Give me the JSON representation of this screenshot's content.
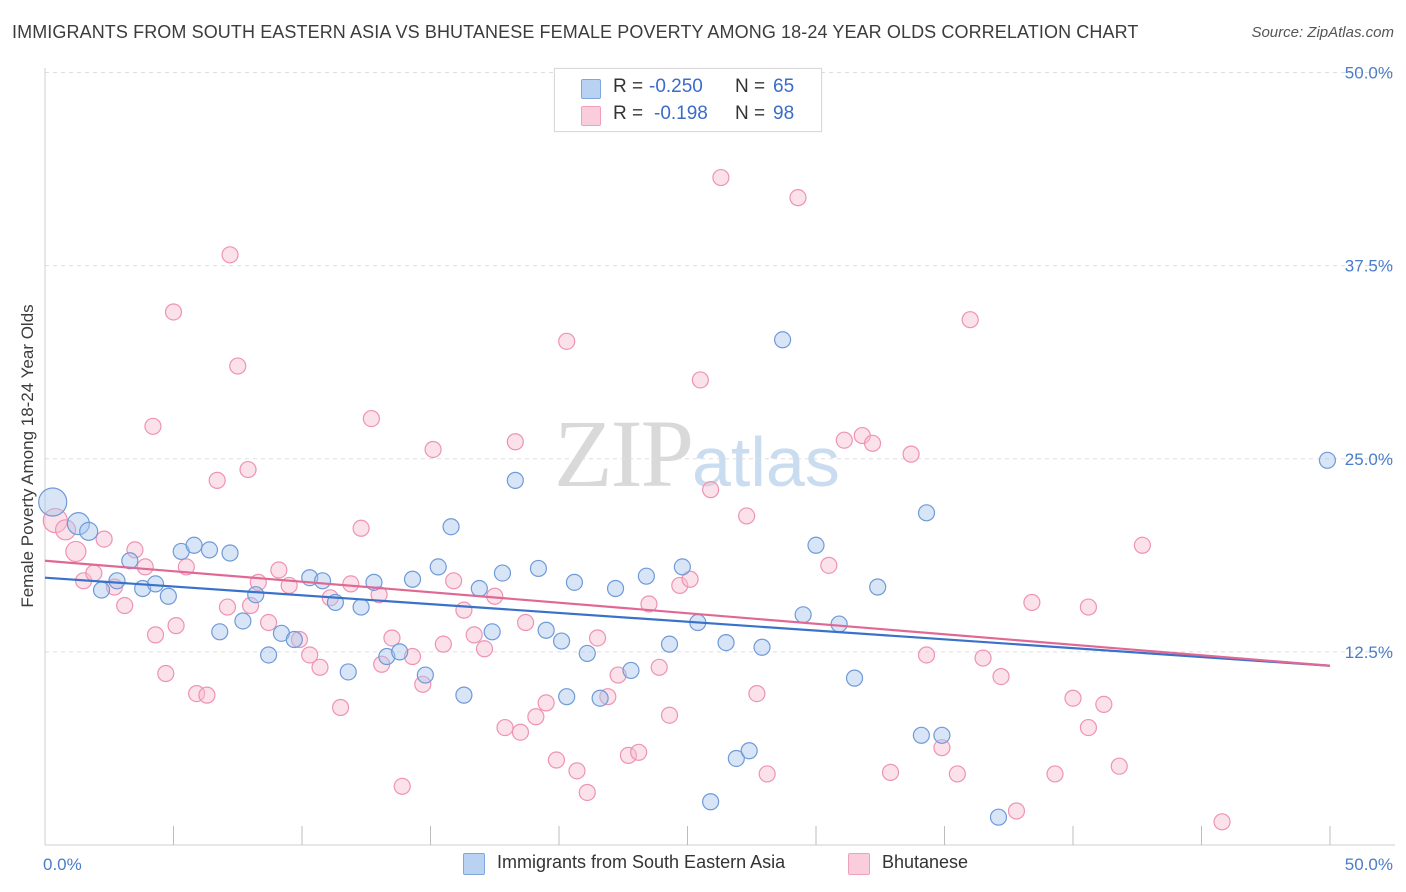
{
  "title": "IMMIGRANTS FROM SOUTH EASTERN ASIA VS BHUTANESE FEMALE POVERTY AMONG 18-24 YEAR OLDS CORRELATION CHART",
  "source": "Source: ZipAtlas.com",
  "watermark": {
    "zip": "ZIP",
    "atlas": "atlas"
  },
  "legend": {
    "rows": [
      {
        "r_label": "R =",
        "r_value": "-0.250",
        "n_label": "N =",
        "n_value": "65"
      },
      {
        "r_label": "R =",
        "r_value": "-0.198",
        "n_label": "N =",
        "n_value": "98"
      }
    ]
  },
  "bottom_legend": [
    "Immigrants from South Eastern Asia",
    "Bhutanese"
  ],
  "colors": {
    "blue_fill": "#a9c6ee",
    "blue_stroke": "#6f9ad8",
    "blue_line": "#3a72c9",
    "pink_fill": "#f6bcd0",
    "pink_stroke": "#ee93b3",
    "pink_line": "#e06895",
    "grid": "#dedede",
    "tick_text": "#4a7cc9"
  },
  "chart_data": {
    "type": "scatter",
    "title": "IMMIGRANTS FROM SOUTH EASTERN ASIA VS BHUTANESE FEMALE POVERTY AMONG 18-24 YEAR OLDS CORRELATION CHART",
    "xlabel": "",
    "ylabel": "Female Poverty Among 18-24 Year Olds",
    "xlim": [
      0,
      50
    ],
    "ylim": [
      0,
      50
    ],
    "x_tick_labels": [
      "0.0%",
      "50.0%"
    ],
    "y_ticks": [
      12.5,
      25.0,
      37.5,
      50.0
    ],
    "y_tick_labels": [
      "12.5%",
      "25.0%",
      "37.5%",
      "50.0%"
    ],
    "grid": "horizontal dashed",
    "legend_position": "top-center",
    "series": [
      {
        "name": "Immigrants from South Eastern Asia",
        "color": "#a9c6ee",
        "trend": {
          "x": [
            0,
            50
          ],
          "y": [
            17.3,
            11.6
          ]
        },
        "points": [
          [
            0.3,
            22.2,
            14
          ],
          [
            1.3,
            20.8,
            11
          ],
          [
            1.7,
            20.3,
            9
          ],
          [
            2.2,
            16.5,
            8
          ],
          [
            2.8,
            17.1,
            8
          ],
          [
            3.3,
            18.4,
            8
          ],
          [
            3.8,
            16.6,
            8
          ],
          [
            4.3,
            16.9,
            8
          ],
          [
            4.8,
            16.1,
            8
          ],
          [
            5.3,
            19.0,
            8
          ],
          [
            5.8,
            19.4,
            8
          ],
          [
            6.4,
            19.1,
            8
          ],
          [
            6.8,
            13.8,
            8
          ],
          [
            7.2,
            18.9,
            8
          ],
          [
            7.7,
            14.5,
            8
          ],
          [
            8.2,
            16.2,
            8
          ],
          [
            8.7,
            12.3,
            8
          ],
          [
            9.2,
            13.7,
            8
          ],
          [
            9.7,
            13.3,
            8
          ],
          [
            10.3,
            17.3,
            8
          ],
          [
            10.8,
            17.1,
            8
          ],
          [
            11.3,
            15.7,
            8
          ],
          [
            11.8,
            11.2,
            8
          ],
          [
            12.3,
            15.4,
            8
          ],
          [
            12.8,
            17.0,
            8
          ],
          [
            13.3,
            12.2,
            8
          ],
          [
            13.8,
            12.5,
            8
          ],
          [
            14.3,
            17.2,
            8
          ],
          [
            14.8,
            11.0,
            8
          ],
          [
            15.3,
            18.0,
            8
          ],
          [
            15.8,
            20.6,
            8
          ],
          [
            16.3,
            9.7,
            8
          ],
          [
            16.9,
            16.6,
            8
          ],
          [
            17.4,
            13.8,
            8
          ],
          [
            17.8,
            17.6,
            8
          ],
          [
            18.3,
            23.6,
            8
          ],
          [
            19.2,
            17.9,
            8
          ],
          [
            19.5,
            13.9,
            8
          ],
          [
            20.1,
            13.2,
            8
          ],
          [
            20.6,
            17.0,
            8
          ],
          [
            21.1,
            12.4,
            8
          ],
          [
            21.6,
            9.5,
            8
          ],
          [
            22.2,
            16.6,
            8
          ],
          [
            22.8,
            11.3,
            8
          ],
          [
            23.4,
            17.4,
            8
          ],
          [
            24.3,
            13.0,
            8
          ],
          [
            24.8,
            18.0,
            8
          ],
          [
            25.4,
            14.4,
            8
          ],
          [
            25.9,
            2.8,
            8
          ],
          [
            26.5,
            13.1,
            8
          ],
          [
            26.9,
            5.6,
            8
          ],
          [
            27.4,
            6.1,
            8
          ],
          [
            27.9,
            12.8,
            8
          ],
          [
            28.7,
            32.7,
            8
          ],
          [
            29.5,
            14.9,
            8
          ],
          [
            30.0,
            19.4,
            8
          ],
          [
            30.9,
            14.3,
            8
          ],
          [
            31.5,
            10.8,
            8
          ],
          [
            32.4,
            16.7,
            8
          ],
          [
            34.1,
            7.1,
            8
          ],
          [
            34.3,
            21.5,
            8
          ],
          [
            34.9,
            7.1,
            8
          ],
          [
            37.1,
            1.8,
            8
          ],
          [
            49.9,
            24.9,
            8
          ],
          [
            20.3,
            9.6,
            8
          ]
        ]
      },
      {
        "name": "Bhutanese",
        "color": "#f6bcd0",
        "trend": {
          "x": [
            0,
            50
          ],
          "y": [
            18.4,
            11.6
          ]
        },
        "points": [
          [
            0.4,
            21.0,
            12
          ],
          [
            0.8,
            20.4,
            10
          ],
          [
            1.5,
            17.1,
            8
          ],
          [
            1.9,
            17.6,
            8
          ],
          [
            2.3,
            19.8,
            8
          ],
          [
            2.7,
            16.7,
            8
          ],
          [
            3.1,
            15.5,
            8
          ],
          [
            3.5,
            19.1,
            8
          ],
          [
            3.9,
            18.0,
            8
          ],
          [
            4.3,
            13.6,
            8
          ],
          [
            4.7,
            11.1,
            8
          ],
          [
            5.1,
            14.2,
            8
          ],
          [
            5.5,
            18.0,
            8
          ],
          [
            5.9,
            9.8,
            8
          ],
          [
            6.3,
            9.7,
            8
          ],
          [
            6.7,
            23.6,
            8
          ],
          [
            7.1,
            15.4,
            8
          ],
          [
            7.5,
            31.0,
            8
          ],
          [
            7.9,
            24.3,
            8
          ],
          [
            8.3,
            17.0,
            8
          ],
          [
            8.7,
            14.4,
            8
          ],
          [
            9.1,
            17.8,
            8
          ],
          [
            9.5,
            16.8,
            8
          ],
          [
            9.9,
            13.3,
            8
          ],
          [
            10.3,
            12.3,
            8
          ],
          [
            10.7,
            11.5,
            8
          ],
          [
            11.1,
            16.0,
            8
          ],
          [
            11.5,
            8.9,
            8
          ],
          [
            11.9,
            16.9,
            8
          ],
          [
            12.3,
            20.5,
            8
          ],
          [
            12.7,
            27.6,
            8
          ],
          [
            13.1,
            11.7,
            8
          ],
          [
            13.5,
            13.4,
            8
          ],
          [
            13.9,
            3.8,
            8
          ],
          [
            14.3,
            12.2,
            8
          ],
          [
            14.7,
            10.4,
            8
          ],
          [
            15.1,
            25.6,
            8
          ],
          [
            15.5,
            13.0,
            8
          ],
          [
            15.9,
            17.1,
            8
          ],
          [
            16.3,
            15.2,
            8
          ],
          [
            16.7,
            13.6,
            8
          ],
          [
            17.1,
            12.7,
            8
          ],
          [
            17.5,
            16.1,
            8
          ],
          [
            17.9,
            7.6,
            8
          ],
          [
            18.3,
            26.1,
            8
          ],
          [
            18.7,
            14.4,
            8
          ],
          [
            19.1,
            8.3,
            8
          ],
          [
            19.5,
            9.2,
            8
          ],
          [
            19.9,
            5.5,
            8
          ],
          [
            20.3,
            32.6,
            8
          ],
          [
            20.7,
            4.8,
            8
          ],
          [
            21.1,
            3.4,
            8
          ],
          [
            21.5,
            13.4,
            8
          ],
          [
            21.9,
            9.6,
            8
          ],
          [
            22.3,
            11.0,
            8
          ],
          [
            22.7,
            5.8,
            8
          ],
          [
            23.1,
            6.0,
            8
          ],
          [
            23.5,
            15.6,
            8
          ],
          [
            23.9,
            11.5,
            8
          ],
          [
            24.3,
            8.4,
            8
          ],
          [
            24.7,
            16.8,
            8
          ],
          [
            25.1,
            17.2,
            8
          ],
          [
            25.5,
            30.1,
            8
          ],
          [
            25.9,
            23.0,
            8
          ],
          [
            26.3,
            43.2,
            8
          ],
          [
            27.3,
            21.3,
            8
          ],
          [
            27.7,
            9.8,
            8
          ],
          [
            28.1,
            4.6,
            8
          ],
          [
            29.3,
            41.9,
            8
          ],
          [
            30.5,
            18.1,
            8
          ],
          [
            31.1,
            26.2,
            8
          ],
          [
            31.8,
            26.5,
            8
          ],
          [
            32.2,
            26.0,
            8
          ],
          [
            32.9,
            4.7,
            8
          ],
          [
            33.7,
            25.3,
            8
          ],
          [
            34.3,
            12.3,
            8
          ],
          [
            34.9,
            6.3,
            8
          ],
          [
            35.5,
            4.6,
            8
          ],
          [
            36.0,
            34.0,
            8
          ],
          [
            36.5,
            12.1,
            8
          ],
          [
            37.2,
            10.9,
            8
          ],
          [
            37.8,
            2.2,
            8
          ],
          [
            38.4,
            15.7,
            8
          ],
          [
            39.3,
            4.6,
            8
          ],
          [
            40.0,
            9.5,
            8
          ],
          [
            40.6,
            15.4,
            8
          ],
          [
            41.2,
            9.1,
            8
          ],
          [
            41.8,
            5.1,
            8
          ],
          [
            42.7,
            19.4,
            8
          ],
          [
            45.8,
            1.5,
            8
          ],
          [
            5.0,
            34.5,
            8
          ],
          [
            7.2,
            38.2,
            8
          ],
          [
            4.2,
            27.1,
            8
          ],
          [
            40.6,
            7.6,
            8
          ],
          [
            1.2,
            19.0,
            10
          ],
          [
            18.5,
            7.3,
            8
          ],
          [
            13.0,
            16.2,
            8
          ],
          [
            8.0,
            15.5,
            8
          ]
        ]
      }
    ]
  }
}
